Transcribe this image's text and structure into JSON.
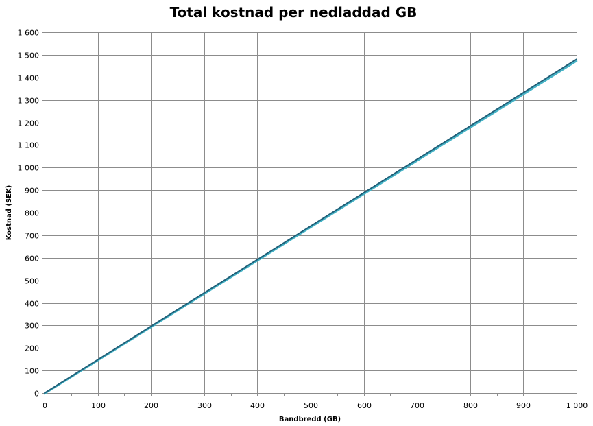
{
  "chart_data": {
    "type": "line",
    "title": "Total kostnad per nedladdad GB",
    "xlabel": "Bandbredd (GB)",
    "ylabel": "Kostnad (SEK)",
    "xlim": [
      0,
      1000
    ],
    "ylim": [
      0,
      1600
    ],
    "x_ticks": [
      0,
      100,
      200,
      300,
      400,
      500,
      600,
      700,
      800,
      900,
      1000
    ],
    "y_ticks": [
      0,
      100,
      200,
      300,
      400,
      500,
      600,
      700,
      800,
      900,
      1000,
      1100,
      1200,
      1300,
      1400,
      1500,
      1600
    ],
    "x_tick_labels": [
      "0",
      "100",
      "200",
      "300",
      "400",
      "500",
      "600",
      "700",
      "800",
      "900",
      "1 000"
    ],
    "y_tick_labels": [
      "0",
      "100",
      "200",
      "300",
      "400",
      "500",
      "600",
      "700",
      "800",
      "900",
      "1 000",
      "1 100",
      "1 200",
      "1 300",
      "1 400",
      "1 500",
      "1 600"
    ],
    "grid": true,
    "series": [
      {
        "color": "#1f5f78",
        "x": [
          0,
          1000
        ],
        "y": [
          0,
          1480
        ]
      },
      {
        "color": "#45b3c6",
        "x": [
          0,
          1000
        ],
        "y": [
          0,
          1475
        ]
      }
    ]
  }
}
